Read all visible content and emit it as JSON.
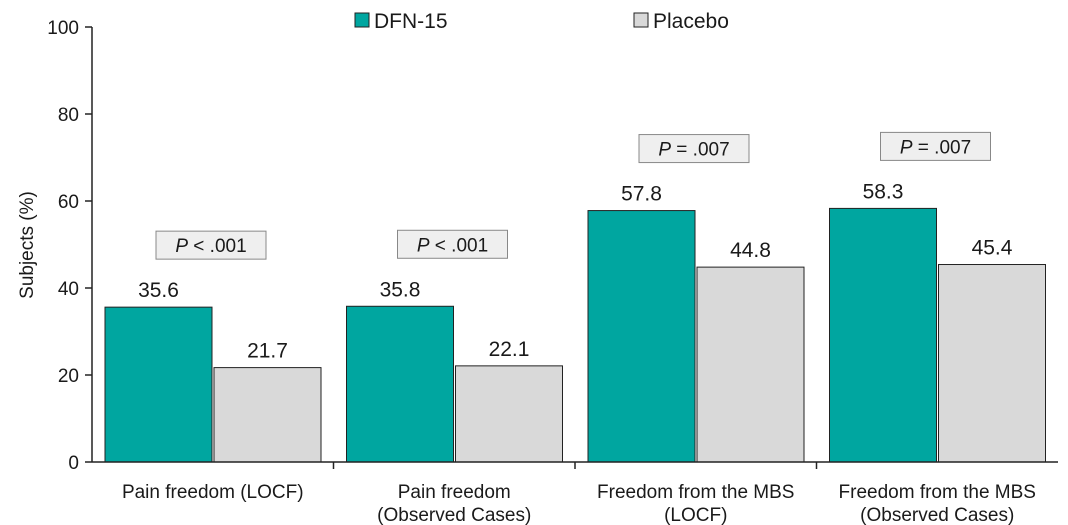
{
  "chart_data": {
    "type": "bar",
    "ylabel": "Subjects (%)",
    "ylim": [
      0,
      100
    ],
    "yticks": [
      0,
      20,
      40,
      60,
      80,
      100
    ],
    "grid": false,
    "legend_position": "top",
    "categories": [
      [
        "Pain freedom (LOCF)"
      ],
      [
        "Pain freedom",
        "(Observed Cases)"
      ],
      [
        "Freedom from the MBS",
        "(LOCF)"
      ],
      [
        "Freedom from the MBS",
        "(Observed Cases)"
      ]
    ],
    "series": [
      {
        "name": "DFN-15",
        "color": "#00a6a0",
        "values": [
          35.6,
          35.8,
          57.8,
          58.3
        ],
        "labels": [
          "35.6",
          "35.8",
          "57.8",
          "58.3"
        ]
      },
      {
        "name": "Placebo",
        "color": "#d9d9d9",
        "values": [
          21.7,
          22.1,
          44.8,
          45.4
        ],
        "labels": [
          "21.7",
          "22.1",
          "44.8",
          "45.4"
        ]
      }
    ],
    "annotations": [
      {
        "category_index": 0,
        "prefix": "P",
        "text": " < .001"
      },
      {
        "category_index": 1,
        "prefix": "P",
        "text": " < .001"
      },
      {
        "category_index": 2,
        "prefix": "P",
        "text": " = .007"
      },
      {
        "category_index": 3,
        "prefix": "P",
        "text": " = .007"
      }
    ]
  }
}
